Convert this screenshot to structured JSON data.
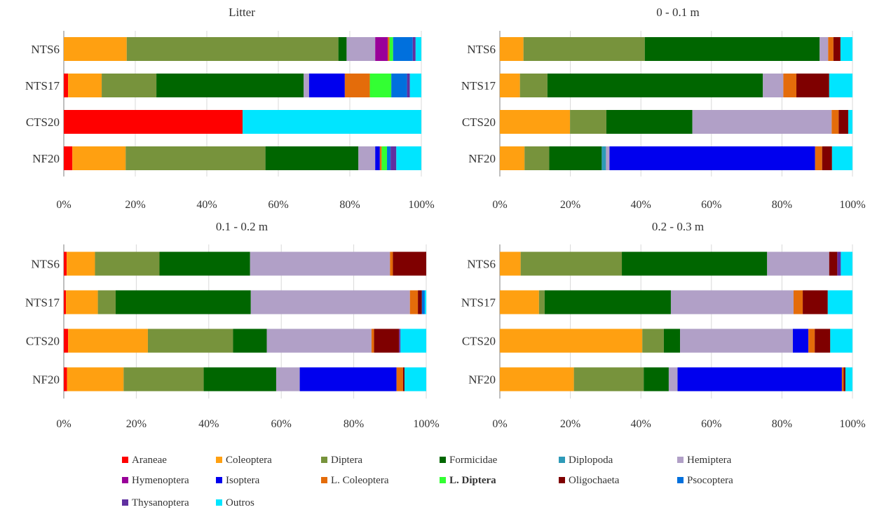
{
  "chart_data": [
    {
      "type": "bar",
      "orientation": "horizontal",
      "stacked": "percent",
      "title": "Litter",
      "categories": [
        "NTS6",
        "NTS17",
        "CTS20",
        "NF20"
      ],
      "xlim": [
        0,
        100
      ],
      "grid": true,
      "x_ticks": [
        "0%",
        "20%",
        "40%",
        "60%",
        "80%",
        "100%"
      ],
      "series": [
        {
          "name": "Araneae",
          "values": [
            0,
            1.2,
            50,
            2.4
          ]
        },
        {
          "name": "Coleoptera",
          "values": [
            17.6,
            9.4,
            0,
            14.9
          ]
        },
        {
          "name": "Diptera",
          "values": [
            59.2,
            15.3,
            0,
            39.1
          ]
        },
        {
          "name": "Formicidae",
          "values": [
            2.3,
            41.2,
            0,
            26.0
          ]
        },
        {
          "name": "Diplopoda",
          "values": [
            0,
            0,
            0,
            0
          ]
        },
        {
          "name": "Hemiptera",
          "values": [
            8.0,
            1.5,
            0,
            4.7
          ]
        },
        {
          "name": "Hymenoptera",
          "values": [
            3.5,
            0,
            0,
            0
          ]
        },
        {
          "name": "Isoptera",
          "values": [
            0,
            10.0,
            0,
            1.3
          ]
        },
        {
          "name": "L. Coleoptera",
          "values": [
            0.5,
            7.0,
            0,
            0.5
          ]
        },
        {
          "name": "L. Diptera",
          "values": [
            1.0,
            6.0,
            0,
            1.5
          ]
        },
        {
          "name": "Oligochaeta",
          "values": [
            0,
            0,
            0,
            0
          ]
        },
        {
          "name": "Psocoptera",
          "values": [
            5.5,
            4.4,
            0,
            1.0
          ]
        },
        {
          "name": "Thysanoptera",
          "values": [
            0.8,
            0.8,
            0,
            1.6
          ]
        },
        {
          "name": "Outros",
          "values": [
            1.6,
            3.2,
            50,
            7.0
          ]
        }
      ]
    },
    {
      "type": "bar",
      "orientation": "horizontal",
      "stacked": "percent",
      "title": "0 - 0.1 m",
      "categories": [
        "NTS6",
        "NTS17",
        "CTS20",
        "NF20"
      ],
      "xlim": [
        0,
        100
      ],
      "grid": true,
      "x_ticks": [
        "0%",
        "20%",
        "40%",
        "60%",
        "80%",
        "100%"
      ],
      "series": [
        {
          "name": "Araneae",
          "values": [
            0,
            0,
            0,
            0
          ]
        },
        {
          "name": "Coleoptera",
          "values": [
            6.7,
            5.7,
            19.9,
            7.0
          ]
        },
        {
          "name": "Diptera",
          "values": [
            34.4,
            7.8,
            10.3,
            7.0
          ]
        },
        {
          "name": "Formicidae",
          "values": [
            49.6,
            61.1,
            24.4,
            14.9
          ]
        },
        {
          "name": "Diplopoda",
          "values": [
            0,
            0,
            0,
            1.2
          ]
        },
        {
          "name": "Hemiptera",
          "values": [
            2.4,
            5.8,
            39.5,
            1.0
          ]
        },
        {
          "name": "Hymenoptera",
          "values": [
            0,
            0,
            0,
            0
          ]
        },
        {
          "name": "Isoptera",
          "values": [
            0,
            0,
            0,
            58.3
          ]
        },
        {
          "name": "L. Coleoptera",
          "values": [
            1.5,
            3.7,
            2.0,
            2.0
          ]
        },
        {
          "name": "L. Diptera",
          "values": [
            0,
            0,
            0,
            0
          ]
        },
        {
          "name": "Oligochaeta",
          "values": [
            2.0,
            9.3,
            2.7,
            2.8
          ]
        },
        {
          "name": "Psocoptera",
          "values": [
            0,
            0,
            0,
            0
          ]
        },
        {
          "name": "Thysanoptera",
          "values": [
            0,
            0,
            0,
            0
          ]
        },
        {
          "name": "Outros",
          "values": [
            3.4,
            6.6,
            1.2,
            5.8
          ]
        }
      ]
    },
    {
      "type": "bar",
      "orientation": "horizontal",
      "stacked": "percent",
      "title": "0.1 - 0.2 m",
      "categories": [
        "NTS6",
        "NTS17",
        "CTS20",
        "NF20"
      ],
      "xlim": [
        0,
        100
      ],
      "grid": true,
      "x_ticks": [
        "0%",
        "20%",
        "40%",
        "60%",
        "80%",
        "100%"
      ],
      "series": [
        {
          "name": "Araneae",
          "values": [
            0.8,
            0.6,
            1.2,
            0.9
          ]
        },
        {
          "name": "Coleoptera",
          "values": [
            7.8,
            8.8,
            22.0,
            15.6
          ]
        },
        {
          "name": "Diptera",
          "values": [
            17.8,
            4.9,
            23.5,
            22.1
          ]
        },
        {
          "name": "Formicidae",
          "values": [
            25.0,
            37.3,
            9.3,
            20.0
          ]
        },
        {
          "name": "Diplopoda",
          "values": [
            0,
            0,
            0,
            0
          ]
        },
        {
          "name": "Hemiptera",
          "values": [
            38.6,
            43.9,
            28.9,
            6.5
          ]
        },
        {
          "name": "Hymenoptera",
          "values": [
            0,
            0,
            0,
            0
          ]
        },
        {
          "name": "Isoptera",
          "values": [
            0,
            0,
            0,
            26.7
          ]
        },
        {
          "name": "L. Coleoptera",
          "values": [
            0.8,
            2.2,
            0.7,
            1.8
          ]
        },
        {
          "name": "L. Diptera",
          "values": [
            0,
            0,
            0,
            0
          ]
        },
        {
          "name": "Oligochaeta",
          "values": [
            9.2,
            1.1,
            6.9,
            0.4
          ]
        },
        {
          "name": "Psocoptera",
          "values": [
            0,
            0.8,
            0,
            0
          ]
        },
        {
          "name": "Thysanoptera",
          "values": [
            0,
            0,
            0.4,
            0
          ]
        },
        {
          "name": "Outros",
          "values": [
            0,
            0.4,
            7.1,
            6.0
          ]
        }
      ]
    },
    {
      "type": "bar",
      "orientation": "horizontal",
      "stacked": "percent",
      "title": "0.2 - 0.3 m",
      "categories": [
        "NTS6",
        "NTS17",
        "CTS20",
        "NF20"
      ],
      "xlim": [
        0,
        100
      ],
      "grid": true,
      "x_ticks": [
        "0%",
        "20%",
        "40%",
        "60%",
        "80%",
        "100%"
      ],
      "series": [
        {
          "name": "Araneae",
          "values": [
            0,
            0,
            0,
            0
          ]
        },
        {
          "name": "Coleoptera",
          "values": [
            5.9,
            11.1,
            40.4,
            21.0
          ]
        },
        {
          "name": "Diptera",
          "values": [
            28.7,
            1.6,
            6.1,
            19.8
          ]
        },
        {
          "name": "Formicidae",
          "values": [
            41.2,
            35.8,
            4.6,
            7.1
          ]
        },
        {
          "name": "Diplopoda",
          "values": [
            0,
            0,
            0,
            0
          ]
        },
        {
          "name": "Hemiptera",
          "values": [
            17.6,
            34.8,
            32.0,
            2.5
          ]
        },
        {
          "name": "Hymenoptera",
          "values": [
            0,
            0,
            0,
            0
          ]
        },
        {
          "name": "Isoptera",
          "values": [
            0,
            0,
            4.4,
            46.6
          ]
        },
        {
          "name": "L. Coleoptera",
          "values": [
            0,
            2.6,
            1.8,
            0.5
          ]
        },
        {
          "name": "L. Diptera",
          "values": [
            0,
            0,
            0,
            0
          ]
        },
        {
          "name": "Oligochaeta",
          "values": [
            2.3,
            7.1,
            4.4,
            0.5
          ]
        },
        {
          "name": "Psocoptera",
          "values": [
            0,
            0,
            0,
            0
          ]
        },
        {
          "name": "Thysanoptera",
          "values": [
            1.0,
            0,
            0,
            0
          ]
        },
        {
          "name": "Outros",
          "values": [
            3.3,
            7.0,
            6.3,
            2.0
          ]
        }
      ]
    }
  ],
  "legend": {
    "placement": "bottom",
    "items": [
      {
        "label": "Araneae",
        "color": "#ff0000"
      },
      {
        "label": "Coleoptera",
        "color": "#ffa011"
      },
      {
        "label": "Diptera",
        "color": "#77933c"
      },
      {
        "label": "Formicidae",
        "color": "#006600"
      },
      {
        "label": "Diplopoda",
        "color": "#2e9ab8"
      },
      {
        "label": "Hemiptera",
        "color": "#b1a0c7"
      },
      {
        "label": "Hymenoptera",
        "color": "#990099"
      },
      {
        "label": "Isoptera",
        "color": "#0000ee"
      },
      {
        "label": "L. Coleoptera",
        "color": "#e46c0a"
      },
      {
        "label": "L. Diptera",
        "color": "#33ff33"
      },
      {
        "label": "Oligochaeta",
        "color": "#7f0000"
      },
      {
        "label": "Psocoptera",
        "color": "#0070dd"
      },
      {
        "label": "Thysanoptera",
        "color": "#6030a0"
      },
      {
        "label": "Outros",
        "color": "#00e5ff"
      }
    ]
  }
}
